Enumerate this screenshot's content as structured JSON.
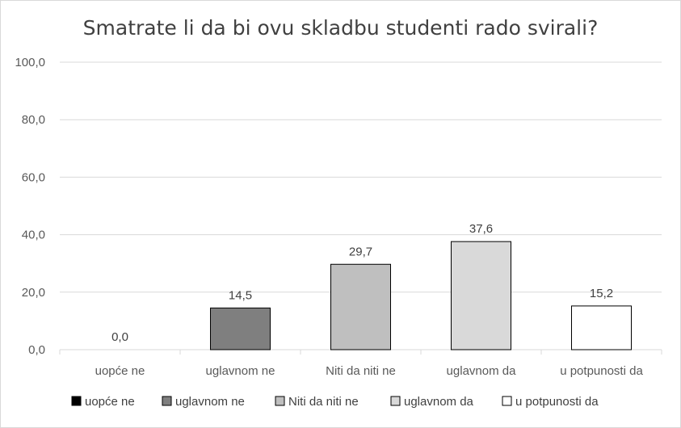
{
  "chart_data": {
    "type": "bar",
    "title": "Smatrate li da bi ovu skladbu studenti rado svirali?",
    "xlabel": "",
    "ylabel": "",
    "ylim": [
      0,
      100
    ],
    "yticks": [
      0,
      20,
      40,
      60,
      80,
      100
    ],
    "ytick_labels": [
      "0,0",
      "20,0",
      "40,0",
      "60,0",
      "80,0",
      "100,0"
    ],
    "categories": [
      "uopće ne",
      "uglavnom ne",
      "Niti da niti ne",
      "uglavnom da",
      "u potpunosti da"
    ],
    "values": [
      0.0,
      14.5,
      29.7,
      37.6,
      15.2
    ],
    "value_labels": [
      "0,0",
      "14,5",
      "29,7",
      "37,6",
      "15,2"
    ],
    "colors": [
      "#000000",
      "#7f7f7f",
      "#bfbfbf",
      "#d9d9d9",
      "#ffffff"
    ],
    "grid": true,
    "legend": {
      "position": "bottom",
      "entries": [
        "uopće ne",
        "uglavnom ne",
        "Niti da niti ne",
        "uglavnom da",
        "u potpunosti da"
      ]
    }
  }
}
